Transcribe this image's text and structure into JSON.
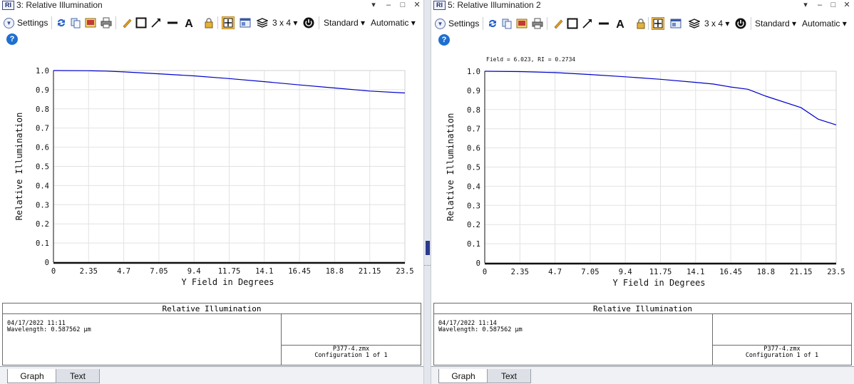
{
  "windows": [
    {
      "icon_text": "RI",
      "title": "3: Relative Illumination",
      "controls": [
        "▾",
        "–",
        "□",
        "✕"
      ],
      "toolbar": {
        "settings_label": "Settings",
        "layout_label": "3 x 4 ▾",
        "standard_label": "Standard ▾",
        "automatic_label": "Automatic ▾"
      },
      "chart_data": {
        "type": "line",
        "title": "",
        "annotation": "",
        "xlabel": "Y Field in Degrees",
        "ylabel": "Relative Illumination",
        "xlim": [
          0,
          23.5
        ],
        "ylim": [
          0,
          1.0
        ],
        "x_ticks": [
          "0",
          "2.35",
          "4.7",
          "7.05",
          "9.4",
          "11.75",
          "14.1",
          "16.45",
          "18.8",
          "21.15",
          "23.5"
        ],
        "y_ticks": [
          "0",
          "0.1",
          "0.2",
          "0.3",
          "0.4",
          "0.5",
          "0.6",
          "0.7",
          "0.8",
          "0.9",
          "1.0"
        ],
        "grid": true,
        "series": [
          {
            "color": "#0000cc",
            "x": [
              0,
              2.35,
              3.5,
              4.7,
              7.05,
              9.4,
              11.75,
              14.1,
              16.45,
              18.8,
              21.15,
              23.5
            ],
            "y": [
              1.0,
              0.999,
              0.997,
              0.993,
              0.983,
              0.972,
              0.958,
              0.942,
              0.925,
              0.909,
              0.893,
              0.883
            ]
          }
        ]
      },
      "info": {
        "header": "Relative Illumination",
        "left_text": "04/17/2022 11:11\nWavelength: 0.587562 µm",
        "right_line1": "P377-4.zmx",
        "right_line2": "Configuration 1 of 1"
      },
      "tabs": [
        "Graph",
        "Text"
      ]
    },
    {
      "icon_text": "RI",
      "title": "5: Relative Illumination 2",
      "controls": [
        "▾",
        "–",
        "□",
        "✕"
      ],
      "toolbar": {
        "settings_label": "Settings",
        "layout_label": "3 x 4 ▾",
        "standard_label": "Standard ▾",
        "automatic_label": "Automatic ▾"
      },
      "chart_data": {
        "type": "line",
        "title": "",
        "annotation": "Field = 6.023, RI = 0.2734",
        "xlabel": "Y Field in Degrees",
        "ylabel": "Relative Illumination",
        "xlim": [
          0,
          23.5
        ],
        "ylim": [
          0,
          1.0
        ],
        "x_ticks": [
          "0",
          "2.35",
          "4.7",
          "7.05",
          "9.4",
          "11.75",
          "14.1",
          "16.45",
          "18.8",
          "21.15",
          "23.5"
        ],
        "y_ticks": [
          "0",
          "0.1",
          "0.2",
          "0.3",
          "0.4",
          "0.5",
          "0.6",
          "0.7",
          "0.8",
          "0.9",
          "1.0"
        ],
        "grid": true,
        "series": [
          {
            "color": "#0000cc",
            "x": [
              0,
              2.35,
              4.7,
              7.05,
              9.4,
              11.75,
              14.1,
              15.3,
              16.45,
              17.6,
              18.8,
              21.15,
              22.3,
              23.5
            ],
            "y": [
              1.0,
              0.998,
              0.993,
              0.983,
              0.971,
              0.958,
              0.942,
              0.933,
              0.918,
              0.906,
              0.87,
              0.81,
              0.75,
              0.72
            ]
          }
        ]
      },
      "info": {
        "header": "Relative Illumination",
        "left_text": "04/17/2022 11:14\nWavelength: 0.587562 µm",
        "right_line1": "P377-4.zmx",
        "right_line2": "Configuration 1 of 1"
      },
      "tabs": [
        "Graph",
        "Text"
      ]
    }
  ]
}
